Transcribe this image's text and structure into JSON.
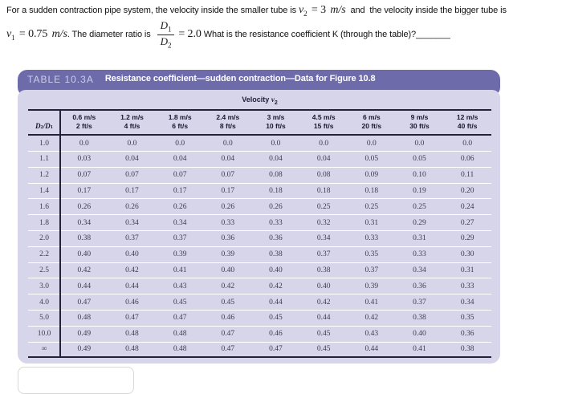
{
  "problem": {
    "line1_pre": "For a sudden contraction pipe system, the velocity inside the smaller tube is ",
    "v2": {
      "var": "v",
      "sub": "2",
      "eq": " = 3 ",
      "unit": "m/s"
    },
    "line1_post": "  and  the velocity inside the bigger tube is",
    "v1": {
      "var": "v",
      "sub": "1",
      "eq": " = 0.75 ",
      "unit": "m/s"
    },
    "line2_mid": ". The diameter ratio is ",
    "fraction": {
      "num_var": "D",
      "num_sub": "1",
      "den_var": "D",
      "den_sub": "2"
    },
    "ratio_eq": "= 2.0",
    "line2_post": " What is the resistance coefficient K (through the table)?",
    "blank": "_______"
  },
  "table": {
    "label": "TABLE 10.3A",
    "title": "Resistance coefficient—sudden contraction—Data for Figure 10.8",
    "velocity": {
      "label": "Velocity ",
      "var": "v",
      "sub": "2"
    },
    "ratio_header": {
      "var1": "D",
      "sub1": "2",
      "slash": "/",
      "var2": "D",
      "sub2": "1"
    },
    "columns": [
      {
        "ms": "0.6 m/s",
        "fts": "2 ft/s"
      },
      {
        "ms": "1.2 m/s",
        "fts": "4 ft/s"
      },
      {
        "ms": "1.8 m/s",
        "fts": "6 ft/s"
      },
      {
        "ms": "2.4 m/s",
        "fts": "8 ft/s"
      },
      {
        "ms": "3 m/s",
        "fts": "10 ft/s"
      },
      {
        "ms": "4.5 m/s",
        "fts": "15 ft/s"
      },
      {
        "ms": "6 m/s",
        "fts": "20 ft/s"
      },
      {
        "ms": "9 m/s",
        "fts": "30 ft/s"
      },
      {
        "ms": "12 m/s",
        "fts": "40 ft/s"
      }
    ],
    "rows": [
      {
        "ratio": "1.0",
        "values": [
          "0.0",
          "0.0",
          "0.0",
          "0.0",
          "0.0",
          "0.0",
          "0.0",
          "0.0",
          "0.0"
        ]
      },
      {
        "ratio": "1.1",
        "values": [
          "0.03",
          "0.04",
          "0.04",
          "0.04",
          "0.04",
          "0.04",
          "0.05",
          "0.05",
          "0.06"
        ]
      },
      {
        "ratio": "1.2",
        "values": [
          "0.07",
          "0.07",
          "0.07",
          "0.07",
          "0.08",
          "0.08",
          "0.09",
          "0.10",
          "0.11"
        ]
      },
      {
        "ratio": "1.4",
        "values": [
          "0.17",
          "0.17",
          "0.17",
          "0.17",
          "0.18",
          "0.18",
          "0.18",
          "0.19",
          "0.20"
        ]
      },
      {
        "ratio": "1.6",
        "values": [
          "0.26",
          "0.26",
          "0.26",
          "0.26",
          "0.26",
          "0.25",
          "0.25",
          "0.25",
          "0.24"
        ]
      },
      {
        "ratio": "1.8",
        "values": [
          "0.34",
          "0.34",
          "0.34",
          "0.33",
          "0.33",
          "0.32",
          "0.31",
          "0.29",
          "0.27"
        ]
      },
      {
        "ratio": "2.0",
        "values": [
          "0.38",
          "0.37",
          "0.37",
          "0.36",
          "0.36",
          "0.34",
          "0.33",
          "0.31",
          "0.29"
        ]
      },
      {
        "ratio": "2.2",
        "values": [
          "0.40",
          "0.40",
          "0.39",
          "0.39",
          "0.38",
          "0.37",
          "0.35",
          "0.33",
          "0.30"
        ]
      },
      {
        "ratio": "2.5",
        "values": [
          "0.42",
          "0.42",
          "0.41",
          "0.40",
          "0.40",
          "0.38",
          "0.37",
          "0.34",
          "0.31"
        ]
      },
      {
        "ratio": "3.0",
        "values": [
          "0.44",
          "0.44",
          "0.43",
          "0.42",
          "0.42",
          "0.40",
          "0.39",
          "0.36",
          "0.33"
        ]
      },
      {
        "ratio": "4.0",
        "values": [
          "0.47",
          "0.46",
          "0.45",
          "0.45",
          "0.44",
          "0.42",
          "0.41",
          "0.37",
          "0.34"
        ]
      },
      {
        "ratio": "5.0",
        "values": [
          "0.48",
          "0.47",
          "0.47",
          "0.46",
          "0.45",
          "0.44",
          "0.42",
          "0.38",
          "0.35"
        ]
      },
      {
        "ratio": "10.0",
        "values": [
          "0.49",
          "0.48",
          "0.48",
          "0.47",
          "0.46",
          "0.45",
          "0.43",
          "0.40",
          "0.36"
        ]
      },
      {
        "ratio": "∞",
        "values": [
          "0.49",
          "0.48",
          "0.48",
          "0.47",
          "0.47",
          "0.45",
          "0.44",
          "0.41",
          "0.38"
        ]
      }
    ]
  },
  "colors": {
    "header_bar": "#6e6bab",
    "table_body_bg": "#d7d5e9",
    "rule_color": "#22223a",
    "title_label_color": "#cfcde8",
    "title_text_color": "#ffffff"
  }
}
